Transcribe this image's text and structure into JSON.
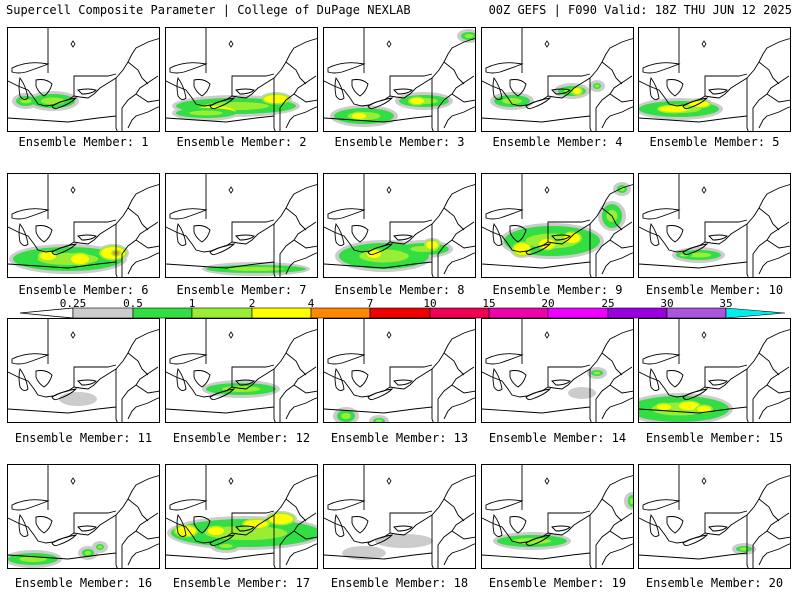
{
  "header": {
    "left": "Supercell Composite Parameter | College of DuPage NEXLAB",
    "right": "00Z GEFS | F090 Valid: 18Z THU JUN 12 2025"
  },
  "label_prefix": "Ensemble Member: ",
  "members": [
    {
      "id": "1",
      "intensity": [
        1,
        0,
        0
      ],
      "blobs": [
        [
          45,
          100,
          22,
          7,
          "g"
        ],
        [
          18,
          100,
          10,
          5,
          "g"
        ]
      ]
    },
    {
      "id": "2",
      "intensity": [
        2,
        1,
        0
      ],
      "blobs": [
        [
          70,
          105,
          60,
          8,
          "g"
        ],
        [
          110,
          98,
          12,
          4,
          "y"
        ],
        [
          50,
          110,
          18,
          5,
          "y"
        ],
        [
          40,
          112,
          30,
          5,
          "g"
        ]
      ]
    },
    {
      "id": "3",
      "intensity": [
        2,
        1,
        0
      ],
      "blobs": [
        [
          40,
          115,
          30,
          8,
          "g"
        ],
        [
          100,
          100,
          25,
          6,
          "g"
        ],
        [
          93,
          100,
          7,
          3,
          "y"
        ],
        [
          35,
          115,
          7,
          3,
          "y"
        ],
        [
          145,
          35,
          8,
          4,
          "g"
        ]
      ]
    },
    {
      "id": "4",
      "intensity": [
        1,
        0,
        0
      ],
      "blobs": [
        [
          30,
          100,
          18,
          6,
          "g"
        ],
        [
          90,
          90,
          14,
          5,
          "g"
        ],
        [
          95,
          90,
          4,
          3,
          "y"
        ],
        [
          115,
          85,
          4,
          3,
          "g"
        ]
      ]
    },
    {
      "id": "5",
      "intensity": [
        2,
        1,
        0
      ],
      "blobs": [
        [
          40,
          108,
          40,
          8,
          "g"
        ],
        [
          35,
          108,
          15,
          3,
          "y"
        ],
        [
          60,
          103,
          10,
          3,
          "y"
        ]
      ]
    },
    {
      "id": "6",
      "intensity": [
        2,
        1,
        1
      ],
      "blobs": [
        [
          60,
          258,
          55,
          12,
          "g"
        ],
        [
          40,
          255,
          8,
          4,
          "y"
        ],
        [
          72,
          258,
          9,
          5,
          "y"
        ],
        [
          105,
          252,
          12,
          6,
          "y"
        ],
        [
          108,
          252,
          3,
          2,
          "o"
        ]
      ]
    },
    {
      "id": "7",
      "intensity": [
        1,
        0,
        0
      ],
      "blobs": [
        [
          90,
          268,
          50,
          4,
          "g"
        ]
      ]
    },
    {
      "id": "8",
      "intensity": [
        2,
        1,
        0
      ],
      "blobs": [
        [
          60,
          255,
          45,
          13,
          "g"
        ],
        [
          50,
          253,
          7,
          4,
          "y"
        ],
        [
          100,
          248,
          25,
          6,
          "g"
        ],
        [
          108,
          244,
          6,
          4,
          "y"
        ]
      ]
    },
    {
      "id": "9",
      "intensity": [
        2,
        1,
        0
      ],
      "blobs": [
        [
          70,
          240,
          48,
          15,
          "g"
        ],
        [
          65,
          243,
          8,
          5,
          "y"
        ],
        [
          90,
          237,
          8,
          5,
          "y"
        ],
        [
          130,
          215,
          10,
          12,
          "g"
        ],
        [
          140,
          188,
          5,
          4,
          "g"
        ],
        [
          40,
          248,
          8,
          6,
          "y"
        ]
      ]
    },
    {
      "id": "10",
      "intensity": [
        1,
        0,
        0
      ],
      "blobs": [
        [
          60,
          254,
          22,
          5,
          "g"
        ],
        [
          45,
          254,
          8,
          3,
          "g"
        ]
      ]
    },
    {
      "id": "11",
      "intensity": [
        0,
        0,
        0
      ],
      "blobs": [
        [
          70,
          398,
          15,
          4,
          "gr"
        ]
      ]
    },
    {
      "id": "12",
      "intensity": [
        1,
        0,
        0
      ],
      "blobs": [
        [
          75,
          388,
          35,
          6,
          "g"
        ]
      ]
    },
    {
      "id": "13",
      "intensity": [
        1,
        0,
        0
      ],
      "blobs": [
        [
          22,
          415,
          9,
          6,
          "g"
        ],
        [
          55,
          420,
          6,
          3,
          "g"
        ]
      ]
    },
    {
      "id": "14",
      "intensity": [
        0,
        0,
        0
      ],
      "blobs": [
        [
          115,
          372,
          6,
          3,
          "g"
        ],
        [
          100,
          392,
          10,
          3,
          "gr"
        ]
      ]
    },
    {
      "id": "15",
      "intensity": [
        2,
        1,
        0
      ],
      "blobs": [
        [
          40,
          408,
          50,
          13,
          "g"
        ],
        [
          50,
          405,
          10,
          4,
          "y"
        ],
        [
          25,
          406,
          7,
          3,
          "y"
        ],
        [
          65,
          408,
          7,
          3,
          "y"
        ]
      ]
    },
    {
      "id": "16",
      "intensity": [
        1,
        0,
        0
      ],
      "blobs": [
        [
          25,
          558,
          25,
          6,
          "g"
        ],
        [
          80,
          552,
          6,
          4,
          "g"
        ],
        [
          92,
          546,
          4,
          3,
          "g"
        ]
      ]
    },
    {
      "id": "17",
      "intensity": [
        2,
        1,
        0
      ],
      "blobs": [
        [
          80,
          532,
          75,
          14,
          "g"
        ],
        [
          90,
          523,
          12,
          4,
          "y"
        ],
        [
          115,
          518,
          12,
          5,
          "y"
        ],
        [
          20,
          530,
          10,
          5,
          "y"
        ],
        [
          50,
          530,
          8,
          4,
          "y"
        ],
        [
          60,
          545,
          12,
          4,
          "g"
        ]
      ]
    },
    {
      "id": "18",
      "intensity": [
        0,
        0,
        0
      ],
      "blobs": [
        [
          40,
          552,
          18,
          4,
          "gr"
        ],
        [
          80,
          540,
          25,
          4,
          "gr"
        ]
      ]
    },
    {
      "id": "19",
      "intensity": [
        1,
        0,
        0
      ],
      "blobs": [
        [
          50,
          540,
          35,
          6,
          "g"
        ],
        [
          150,
          500,
          4,
          6,
          "g"
        ]
      ]
    },
    {
      "id": "20",
      "intensity": [
        0,
        0,
        0
      ],
      "blobs": [
        [
          105,
          548,
          8,
          3,
          "g"
        ]
      ]
    }
  ],
  "colorbar": {
    "labels": [
      "0.25",
      "0.5",
      "1",
      "2",
      "4",
      "7",
      "10",
      "15",
      "20",
      "25",
      "30",
      "35"
    ],
    "colors": [
      "#cccccc",
      "#33dd44",
      "#99ee33",
      "#ffff00",
      "#ff8800",
      "#ee0000",
      "#ee0055",
      "#ee00aa",
      "#ee00ff",
      "#9900dd",
      "#aa55dd",
      "#00eeee"
    ]
  },
  "fill_colors": {
    "gr": "#cccccc",
    "g": "#33dd44",
    "lg": "#99ee33",
    "y": "#ffff00",
    "o": "#ff8800"
  }
}
